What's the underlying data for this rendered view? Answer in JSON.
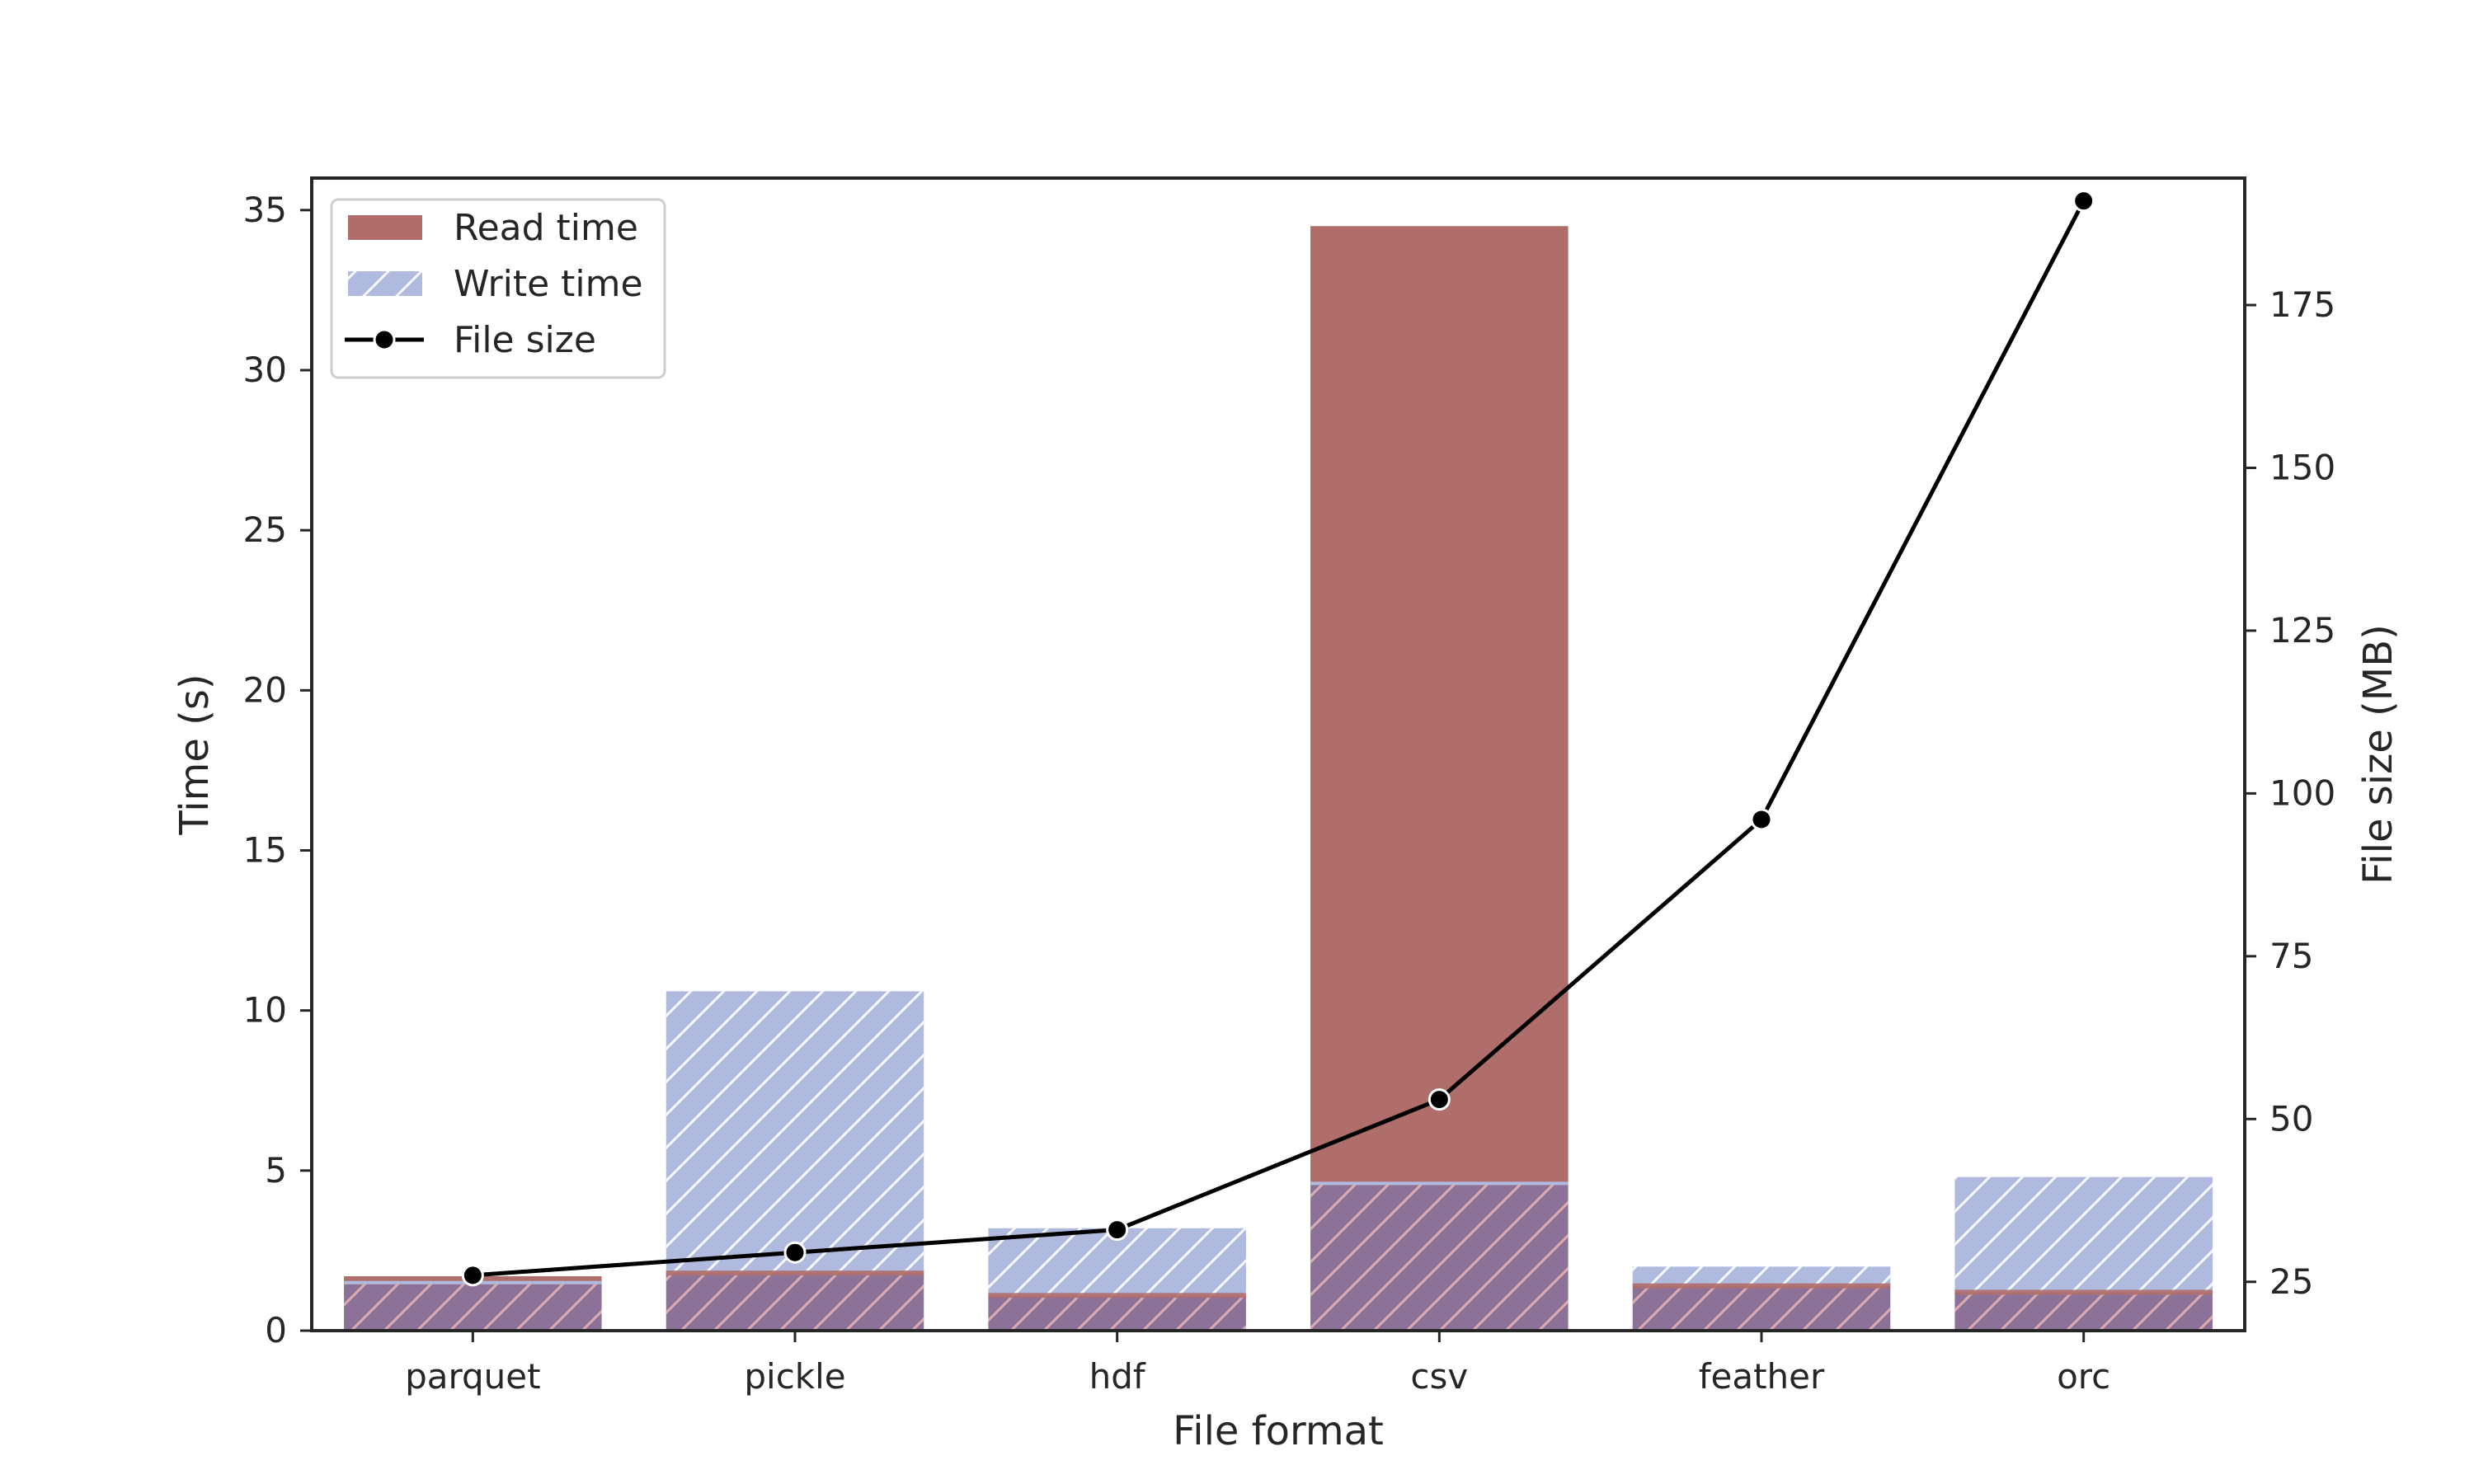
{
  "chart_data": {
    "type": "bar",
    "categories": [
      "parquet",
      "pickle",
      "hdf",
      "csv",
      "feather",
      "orc"
    ],
    "series": [
      {
        "name": "Read time",
        "kind": "bar",
        "axis": "left",
        "values": [
          1.7,
          1.8,
          1.1,
          34.5,
          1.4,
          1.2
        ]
      },
      {
        "name": "Write time",
        "kind": "bar",
        "axis": "left",
        "pattern": "hatched",
        "values": [
          1.5,
          10.6,
          3.2,
          4.6,
          2.0,
          4.8
        ]
      },
      {
        "name": "File size",
        "kind": "line",
        "axis": "right",
        "marker": "circle",
        "values": [
          26,
          29.5,
          33,
          53,
          96,
          191
        ]
      }
    ],
    "xlabel": "File format",
    "ylabel": "Time (s)",
    "y2label": "File size (MB)",
    "ylim": [
      0,
      36.0
    ],
    "y2lim": [
      17.5,
      194.5
    ],
    "yticks": [
      "0",
      "5",
      "10",
      "15",
      "20",
      "25",
      "30",
      "35"
    ],
    "y2ticks": [
      "25",
      "50",
      "75",
      "100",
      "125",
      "150",
      "175"
    ],
    "legend": [
      "Read time",
      "Write time",
      "File size"
    ],
    "legend_position": "top-left",
    "grid": false,
    "colors": {
      "read": "#b06e6b",
      "write": "#b0b9de",
      "line": "#000000",
      "axis": "#262626"
    }
  }
}
